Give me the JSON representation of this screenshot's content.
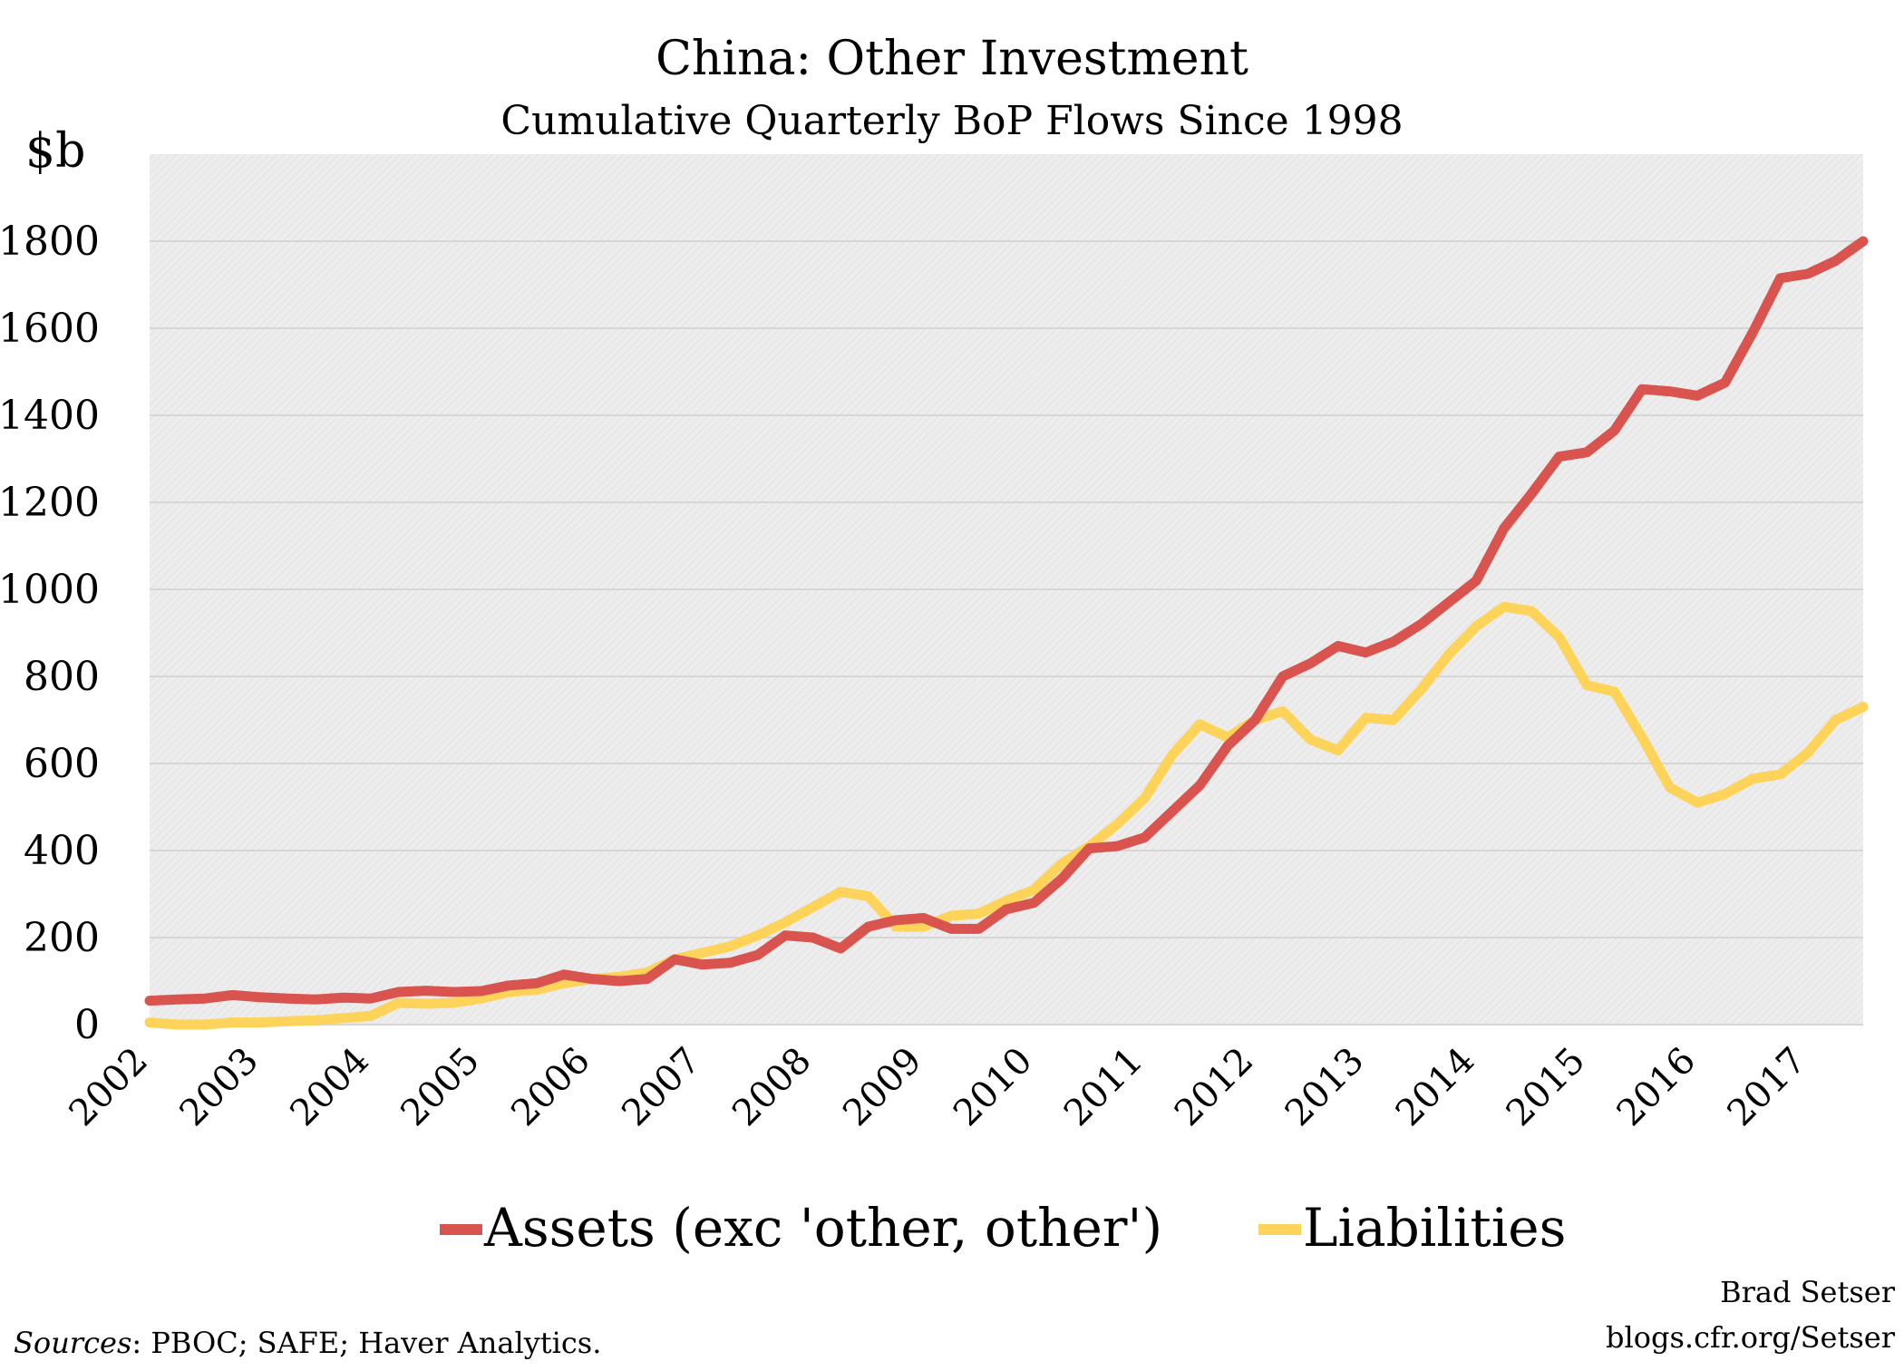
{
  "chart_data": {
    "type": "line",
    "title": "China: Other Investment",
    "subtitle": "Cumulative Quarterly BoP Flows Since 1998",
    "ylabel": "$b",
    "ylim": [
      0,
      2000
    ],
    "yticks": [
      0,
      200,
      400,
      600,
      800,
      1000,
      1200,
      1400,
      1600,
      1800
    ],
    "x_tick_labels": [
      "2002",
      "2003",
      "2004",
      "2005",
      "2006",
      "2007",
      "2008",
      "2009",
      "2010",
      "2011",
      "2012",
      "2013",
      "2014",
      "2015",
      "2016",
      "2017"
    ],
    "x_start_year": 2002,
    "points_per_year": 4,
    "grid": true,
    "legend_position": "bottom",
    "series": [
      {
        "name": "Assets (exc 'other, other')",
        "color": "#d9534f",
        "values": [
          55,
          58,
          60,
          68,
          63,
          60,
          58,
          62,
          60,
          75,
          78,
          75,
          77,
          90,
          95,
          115,
          105,
          100,
          105,
          150,
          138,
          142,
          160,
          205,
          200,
          175,
          225,
          240,
          245,
          220,
          220,
          265,
          280,
          335,
          405,
          410,
          430,
          490,
          550,
          640,
          700,
          800,
          830,
          870,
          855,
          880,
          920,
          970,
          1020,
          1140,
          1220,
          1305,
          1315,
          1365,
          1460,
          1455,
          1445,
          1475,
          1590,
          1715,
          1725,
          1755,
          1800
        ]
      },
      {
        "name": "Liabilities",
        "color": "#fdd35a",
        "values": [
          5,
          0,
          0,
          5,
          5,
          8,
          10,
          15,
          20,
          50,
          48,
          50,
          60,
          75,
          80,
          95,
          105,
          110,
          120,
          150,
          165,
          180,
          205,
          235,
          270,
          305,
          295,
          225,
          225,
          250,
          255,
          285,
          310,
          370,
          410,
          460,
          520,
          620,
          690,
          660,
          700,
          720,
          655,
          630,
          705,
          700,
          770,
          850,
          915,
          960,
          950,
          890,
          780,
          765,
          660,
          545,
          510,
          530,
          565,
          575,
          625,
          700,
          730
        ]
      }
    ]
  },
  "credit": {
    "author": "Brad Setser",
    "url": "blogs.cfr.org/Setser"
  },
  "sources": {
    "label": "Sources",
    "text": ": PBOC; SAFE; Haver Analytics."
  },
  "colors": {
    "plot_background": "#ebebeb",
    "gridline": "#d6d6d6"
  }
}
